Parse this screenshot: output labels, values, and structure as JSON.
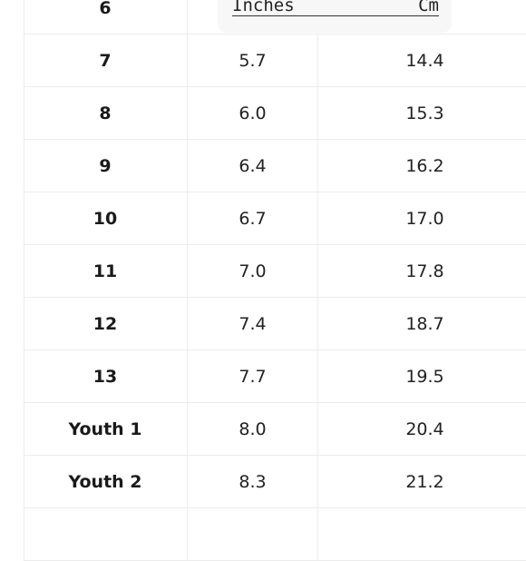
{
  "header": {
    "inches_label": "Inches",
    "cm_label": "Cm"
  },
  "rows": [
    {
      "size": "6",
      "inches": "",
      "cm": ""
    },
    {
      "size": "7",
      "inches": "5.7",
      "cm": "14.4"
    },
    {
      "size": "8",
      "inches": "6.0",
      "cm": "15.3"
    },
    {
      "size": "9",
      "inches": "6.4",
      "cm": "16.2"
    },
    {
      "size": "10",
      "inches": "6.7",
      "cm": "17.0"
    },
    {
      "size": "11",
      "inches": "7.0",
      "cm": "17.8"
    },
    {
      "size": "12",
      "inches": "7.4",
      "cm": "18.7"
    },
    {
      "size": "13",
      "inches": "7.7",
      "cm": "19.5"
    },
    {
      "size": "Youth 1",
      "inches": "8.0",
      "cm": "20.4"
    },
    {
      "size": "Youth 2",
      "inches": "8.3",
      "cm": "21.2"
    },
    {
      "size": "",
      "inches": "",
      "cm": ""
    }
  ]
}
